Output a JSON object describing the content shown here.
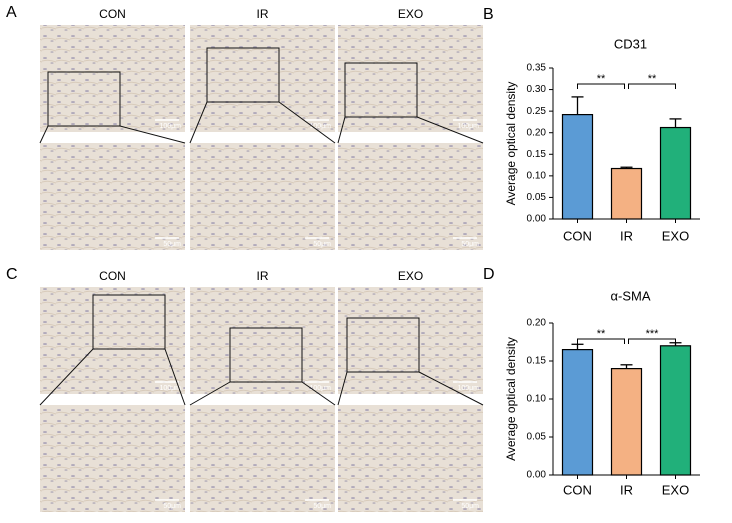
{
  "micrographs": [
    {
      "panel": "A",
      "columns": [
        "CON",
        "IR",
        "EXO"
      ],
      "scale_labels": [
        [
          "100μm",
          "100μm",
          "100μm"
        ],
        [
          "50μm",
          "50μm",
          "50μm"
        ]
      ]
    },
    {
      "panel": "C",
      "columns": [
        "CON",
        "IR",
        "EXO"
      ],
      "scale_labels": [
        [
          "100μm",
          "100μm",
          "100μm"
        ],
        [
          "50μm",
          "50μm",
          "50μm"
        ]
      ]
    }
  ],
  "chart_data": [
    {
      "type": "bar",
      "panel": "B",
      "title": "CD31",
      "y_label": "Average optical density",
      "categories": [
        "CON",
        "IR",
        "EXO"
      ],
      "values": [
        0.242,
        0.117,
        0.212
      ],
      "errors": [
        0.041,
        0.003,
        0.02
      ],
      "colors": [
        "#5b9bd5",
        "#f4b183",
        "#21b07a"
      ],
      "ylim": [
        0,
        0.35
      ],
      "yticks": [
        {
          "value": 0,
          "label": "0.00"
        },
        0.05,
        {
          "value": 0.1,
          "label": "0.10"
        },
        0.15,
        {
          "value": 0.2,
          "label": "0.20"
        },
        0.25,
        {
          "value": 0.3,
          "label": "0.30"
        },
        0.35
      ],
      "significance": [
        {
          "between": [
            0,
            1
          ],
          "label": "**"
        },
        {
          "between": [
            1,
            2
          ],
          "label": "**"
        }
      ]
    },
    {
      "type": "bar",
      "panel": "D",
      "title": "α-SMA",
      "y_label": "Average optical density",
      "categories": [
        "CON",
        "IR",
        "EXO"
      ],
      "values": [
        0.165,
        0.14,
        0.17
      ],
      "errors": [
        0.007,
        0.005,
        0.004
      ],
      "colors": [
        "#5b9bd5",
        "#f4b183",
        "#21b07a"
      ],
      "ylim": [
        0,
        0.2
      ],
      "yticks": [
        {
          "value": 0,
          "label": "0.00"
        },
        0.05,
        {
          "value": 0.1,
          "label": "0.10"
        },
        0.15,
        {
          "value": 0.2,
          "label": "0.20"
        }
      ],
      "significance": [
        {
          "between": [
            0,
            1
          ],
          "label": "**"
        },
        {
          "between": [
            1,
            2
          ],
          "label": "***"
        }
      ]
    }
  ]
}
